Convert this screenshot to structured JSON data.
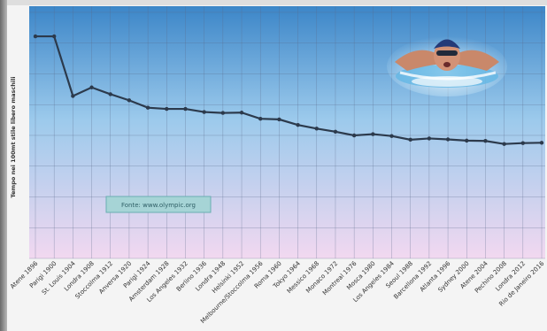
{
  "chart_data": {
    "type": "line",
    "ylabel": "Tempo nei 100mt stile libero maschili",
    "source_note": "Fonte: www.olympic.org",
    "categories": [
      "Atene 1896",
      "Parigi 1900",
      "St. Louis 1904",
      "Londra 1908",
      "Stoccolma 1912",
      "Anversa 1920",
      "Parigi 1924",
      "Amsterdam 1928",
      "Los Angeles 1932",
      "Berlino 1936",
      "Londra 1948",
      "Helsinki 1952",
      "Melbourne/Stoccolma 1956",
      "Roma 1960",
      "Tokyo 1964",
      "Messico 1968",
      "Monaco 1972",
      "Montreal 1976",
      "Mosca 1980",
      "Los Angeles 1984",
      "Seoul 1988",
      "Barcellona 1992",
      "Atlanta 1996",
      "Sydney 2000",
      "Atene 2004",
      "Pechino 2008",
      "Londra 2012",
      "Rio de Janeiro 2016"
    ],
    "series": [
      {
        "name": "",
        "values": [
          82.2,
          82.2,
          62.8,
          65.6,
          63.4,
          61.4,
          59.0,
          58.6,
          58.6,
          57.6,
          57.3,
          57.4,
          55.4,
          55.2,
          53.4,
          52.2,
          51.2,
          49.99,
          50.4,
          49.8,
          48.6,
          49.0,
          48.7,
          48.3,
          48.2,
          47.2,
          47.5,
          47.6
        ]
      }
    ],
    "yrange": [
      10,
      92
    ],
    "grid": true,
    "colors": {
      "line": "#2c3a4c",
      "bg_top": "#3c86c8",
      "bg_mid": "#9ccaec",
      "bg_bottom": "#f2d8f0",
      "legend_fill": "#a6d4d6"
    },
    "inset_image": "swimmer-butterfly-photo"
  }
}
